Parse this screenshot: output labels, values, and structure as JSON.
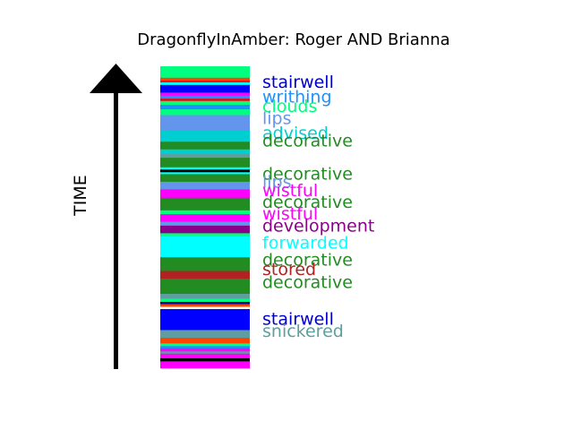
{
  "chart_data": {
    "type": "bar",
    "title": "DragonflyInAmber: Roger AND Brianna",
    "ylabel": "TIME",
    "xlabel": "",
    "grid": false,
    "legend": "none",
    "stripes": [
      {
        "color": "#00ff7f",
        "height": 3
      },
      {
        "color": "#ff4500",
        "height": 0.8
      },
      {
        "color": "#ff0000",
        "height": 0.4
      },
      {
        "color": "#00ffff",
        "height": 0.7
      },
      {
        "color": "#0000ff",
        "height": 2
      },
      {
        "color": "#ff00ff",
        "height": 0.8
      },
      {
        "color": "#1e90ff",
        "height": 0.8
      },
      {
        "color": "#ff0000",
        "height": 0.6
      },
      {
        "color": "#00ff7f",
        "height": 1
      },
      {
        "color": "#1e90ff",
        "height": 1.2
      },
      {
        "color": "#00ff7f",
        "height": 1.5
      },
      {
        "color": "#6495ed",
        "height": 4
      },
      {
        "color": "#00ced1",
        "height": 3
      },
      {
        "color": "#228b22",
        "height": 2
      },
      {
        "color": "#00ced1",
        "height": 1.2
      },
      {
        "color": "#5f9ea0",
        "height": 1
      },
      {
        "color": "#228b22",
        "height": 2.5
      },
      {
        "color": "#00ffff",
        "height": 0.6
      },
      {
        "color": "#000000",
        "height": 0.7
      },
      {
        "color": "#00ffff",
        "height": 0.5
      },
      {
        "color": "#228b22",
        "height": 2
      },
      {
        "color": "#6495ed",
        "height": 2
      },
      {
        "color": "#ff00ff",
        "height": 2.2
      },
      {
        "color": "#228b22",
        "height": 3.3
      },
      {
        "color": "#00ff7f",
        "height": 1
      },
      {
        "color": "#ff00ff",
        "height": 2
      },
      {
        "color": "#6495ed",
        "height": 1
      },
      {
        "color": "#8b008b",
        "height": 2
      },
      {
        "color": "#00ff7f",
        "height": 0.8
      },
      {
        "color": "#00ffff",
        "height": 5.5
      },
      {
        "color": "#228b22",
        "height": 3.6
      },
      {
        "color": "#b22222",
        "height": 2
      },
      {
        "color": "#228b22",
        "height": 4
      },
      {
        "color": "#5f9ea0",
        "height": 1.3
      },
      {
        "color": "#00ff7f",
        "height": 0.8
      },
      {
        "color": "#00008b",
        "height": 0.6
      },
      {
        "color": "#ff4500",
        "height": 0.7
      },
      {
        "color": "#ffffff",
        "height": 0.6
      },
      {
        "color": "#0000ff",
        "height": 5.5
      },
      {
        "color": "#5f9ea0",
        "height": 2
      },
      {
        "color": "#ff4500",
        "height": 1.5
      },
      {
        "color": "#00ff7f",
        "height": 0.7
      },
      {
        "color": "#1e90ff",
        "height": 0.6
      },
      {
        "color": "#ff00ff",
        "height": 0.8
      },
      {
        "color": "#5f9ea0",
        "height": 0.6
      },
      {
        "color": "#ff00ff",
        "height": 1.2
      },
      {
        "color": "#000000",
        "height": 0.8
      },
      {
        "color": "#ff00ff",
        "height": 1.8
      }
    ],
    "labels": [
      {
        "text": "stairwell",
        "color": "#0000cd",
        "level": 0.05
      },
      {
        "text": "writhing",
        "color": "#1e90ff",
        "level": 0.1
      },
      {
        "text": "clouds",
        "color": "#00ff7f",
        "level": 0.13
      },
      {
        "text": "lips",
        "color": "#6495ed",
        "level": 0.17
      },
      {
        "text": "advised",
        "color": "#00ced1",
        "level": 0.22
      },
      {
        "text": "decorative",
        "color": "#228b22",
        "level": 0.245
      },
      {
        "text": "decorative",
        "color": "#228b22",
        "level": 0.354
      },
      {
        "text": "lips",
        "color": "#6495ed",
        "level": 0.382
      },
      {
        "text": "wistful",
        "color": "#ff00ff",
        "level": 0.41
      },
      {
        "text": "decorative",
        "color": "#228b22",
        "level": 0.448
      },
      {
        "text": "wistful",
        "color": "#ff00ff",
        "level": 0.487
      },
      {
        "text": "development",
        "color": "#8b008b",
        "level": 0.527
      },
      {
        "text": "forwarded",
        "color": "#00ffff",
        "level": 0.583
      },
      {
        "text": "decorative",
        "color": "#228b22",
        "level": 0.64
      },
      {
        "text": "stored",
        "color": "#b22222",
        "level": 0.67
      },
      {
        "text": "decorative",
        "color": "#228b22",
        "level": 0.713
      },
      {
        "text": "stairwell",
        "color": "#0000cd",
        "level": 0.835
      },
      {
        "text": "snickered",
        "color": "#5f9ea0",
        "level": 0.875
      }
    ]
  }
}
